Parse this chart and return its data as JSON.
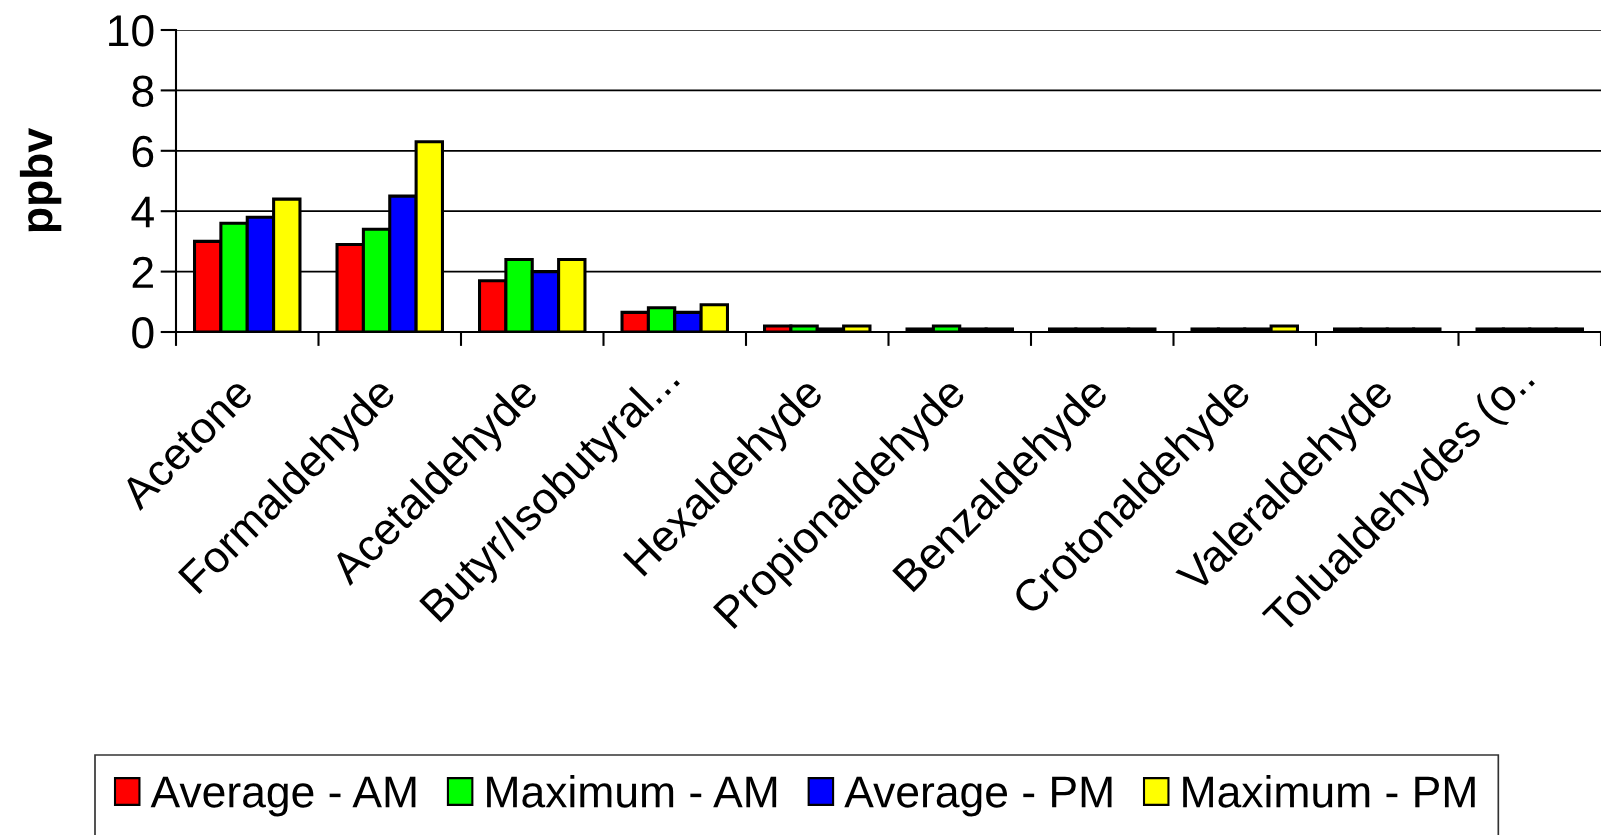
{
  "chart_data": {
    "type": "bar",
    "ylabel": "ppbv",
    "categories": [
      "Acetone",
      "Formaldehyde",
      "Acetaldehyde",
      "Butyr/Isobutyral...",
      "Hexaldehyde",
      "Propionaldehyde",
      "Benzaldehyde",
      "Crotonaldehyde",
      "Valeraldehyde",
      "Tolualdehydes (o.."
    ],
    "series": [
      {
        "name": "Average - AM",
        "color": "#ff0000",
        "values": [
          3.0,
          2.9,
          1.7,
          0.65,
          0.2,
          0.1,
          0.1,
          0.1,
          0.1,
          0.1
        ]
      },
      {
        "name": "Maximum - AM",
        "color": "#00ff00",
        "values": [
          3.6,
          3.4,
          2.4,
          0.8,
          0.2,
          0.2,
          0.1,
          0.1,
          0.1,
          0.1
        ]
      },
      {
        "name": "Average - PM",
        "color": "#0000ff",
        "values": [
          3.8,
          4.5,
          2.0,
          0.65,
          0.1,
          0.1,
          0.1,
          0.1,
          0.1,
          0.1
        ]
      },
      {
        "name": "Maximum - PM",
        "color": "#ffff00",
        "values": [
          4.4,
          6.3,
          2.4,
          0.9,
          0.2,
          0.1,
          0.1,
          0.2,
          0.1,
          0.1
        ]
      }
    ],
    "ylim": [
      0,
      10
    ],
    "yticks": [
      0,
      2,
      4,
      6,
      8,
      10
    ],
    "grid": "y",
    "legend": "bottom"
  }
}
